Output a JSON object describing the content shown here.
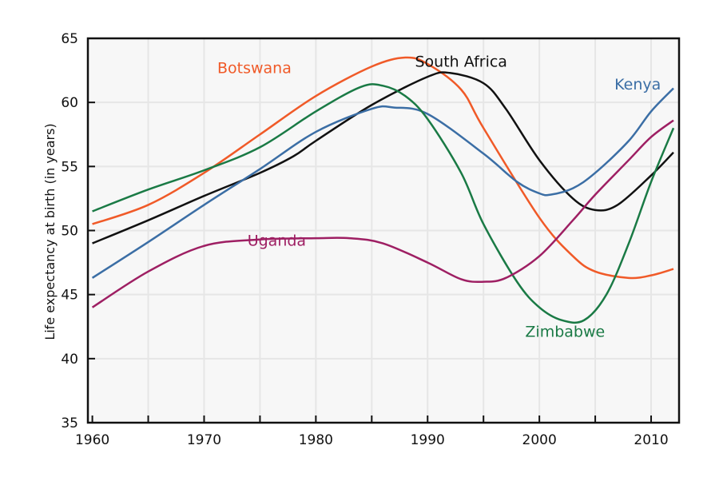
{
  "chart_data": {
    "type": "line",
    "title": "",
    "xlabel": "",
    "ylabel": "Life expectancy at birth (in years)",
    "xlim": [
      1959.6,
      2012.5
    ],
    "ylim": [
      35,
      65
    ],
    "x_ticks": [
      1960,
      1970,
      1980,
      1990,
      2000,
      2010
    ],
    "y_ticks": [
      35,
      40,
      45,
      50,
      55,
      60,
      65
    ],
    "grid": true,
    "legend": "none (direct labels on lines)",
    "series": [
      {
        "name": "Botswana",
        "color": "#f05a28",
        "x": [
          1960,
          1965,
          1970,
          1975,
          1980,
          1985,
          1988,
          1990,
          1993,
          1995,
          2000,
          2003,
          2005,
          2008,
          2010,
          2012
        ],
        "y": [
          50.5,
          52,
          54.5,
          57.5,
          60.5,
          62.8,
          63.5,
          63,
          61,
          58,
          51,
          48,
          46.8,
          46.3,
          46.5,
          47
        ]
      },
      {
        "name": "South Africa",
        "color": "#111111",
        "x": [
          1960,
          1965,
          1970,
          1975,
          1978,
          1980,
          1985,
          1990,
          1992,
          1995,
          1997,
          2000,
          2003,
          2005,
          2007,
          2010,
          2012
        ],
        "y": [
          49,
          50.8,
          52.7,
          54.5,
          55.8,
          57,
          59.8,
          62,
          62.3,
          61.5,
          59.5,
          55.5,
          52.5,
          51.6,
          52,
          54.3,
          56.1
        ]
      },
      {
        "name": "Kenya",
        "color": "#3b6ea5",
        "x": [
          1960,
          1965,
          1970,
          1975,
          1980,
          1985,
          1987,
          1990,
          1995,
          1998,
          2000,
          2001,
          2003,
          2005,
          2008,
          2010,
          2012
        ],
        "y": [
          46.3,
          49.1,
          52,
          54.8,
          57.7,
          59.5,
          59.6,
          59.1,
          56,
          53.8,
          52.9,
          52.8,
          53.3,
          54.5,
          57,
          59.3,
          61.1
        ]
      },
      {
        "name": "Zimbabwe",
        "color": "#1a7a45",
        "x": [
          1960,
          1965,
          1970,
          1975,
          1980,
          1984,
          1986,
          1988,
          1990,
          1993,
          1995,
          1998,
          2000,
          2002,
          2004,
          2006,
          2008,
          2010,
          2012
        ],
        "y": [
          51.5,
          53.2,
          54.7,
          56.5,
          59.3,
          61.2,
          61.3,
          60.5,
          58.7,
          54.5,
          50.5,
          46,
          44,
          43,
          43,
          45,
          49,
          53.8,
          58
        ]
      },
      {
        "name": "Uganda",
        "color": "#9e1f63",
        "x": [
          1960,
          1965,
          1970,
          1975,
          1980,
          1983,
          1986,
          1990,
          1993,
          1995,
          1997,
          2000,
          2003,
          2005,
          2008,
          2010,
          2012
        ],
        "y": [
          44,
          46.8,
          48.8,
          49.3,
          49.4,
          49.4,
          49,
          47.5,
          46.2,
          46,
          46.3,
          48,
          50.8,
          52.8,
          55.5,
          57.3,
          58.6
        ]
      }
    ]
  }
}
